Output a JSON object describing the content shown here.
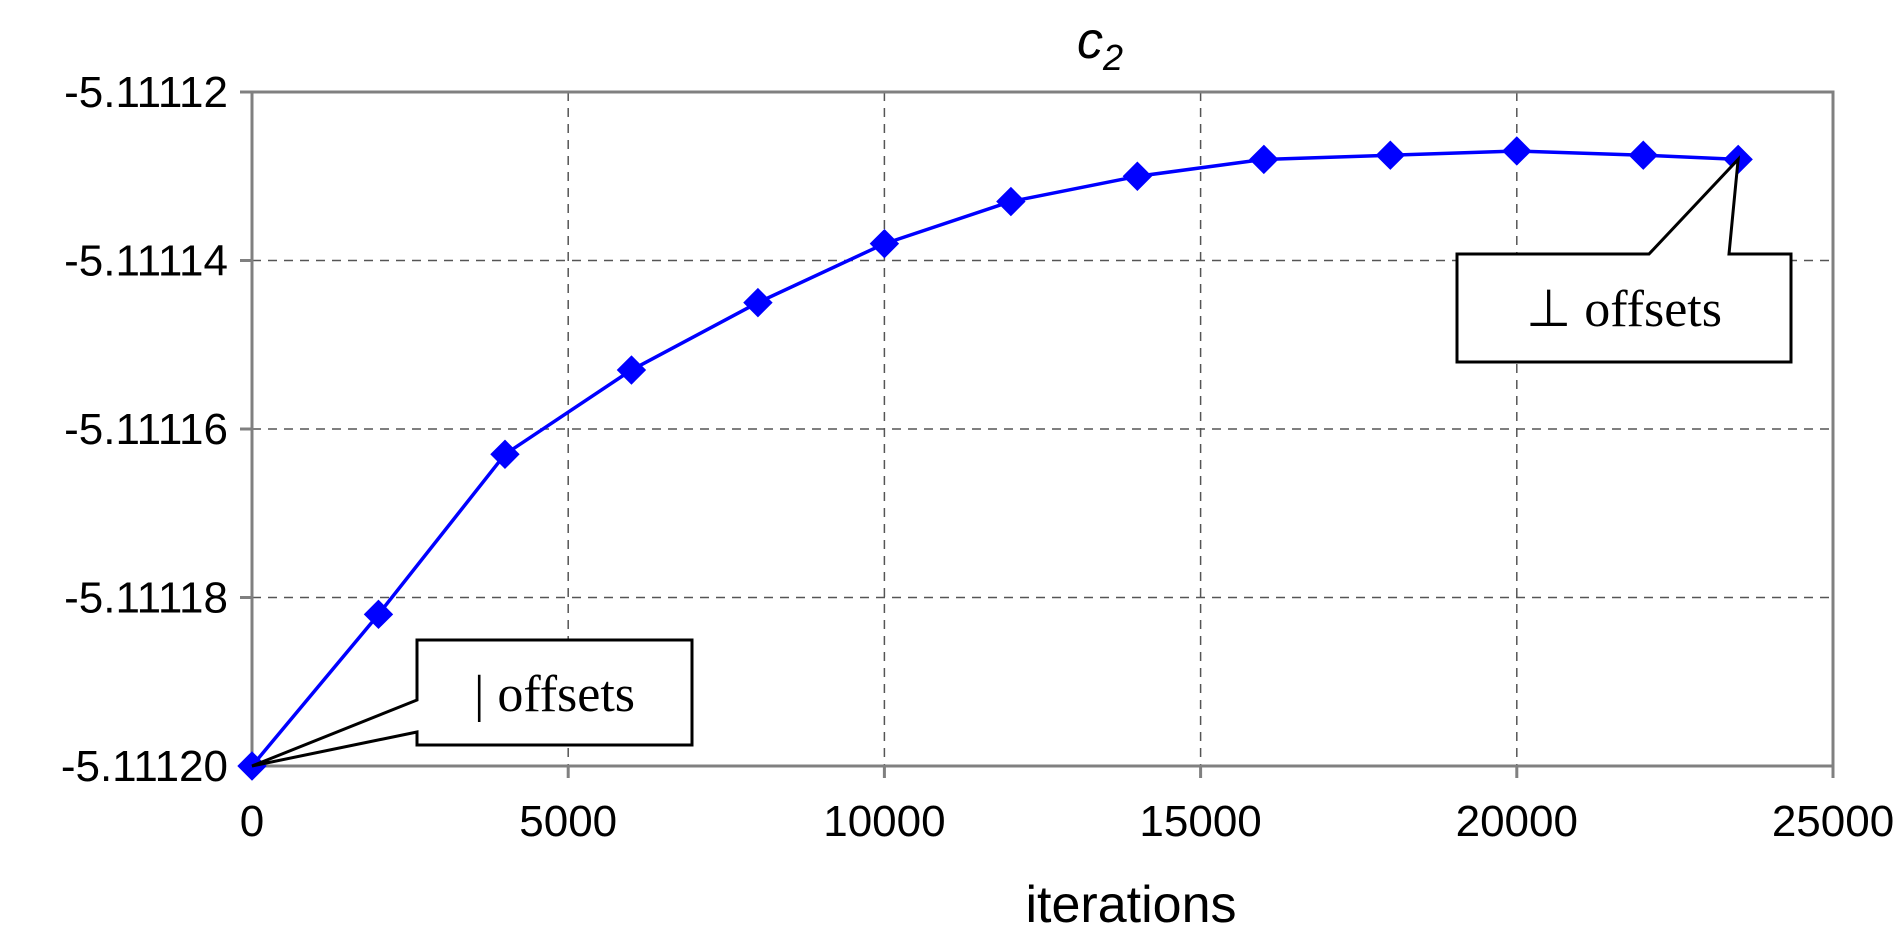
{
  "chart_data": {
    "type": "line",
    "title": {
      "main": "c",
      "subscript": "2"
    },
    "xlabel": "iterations",
    "ylabel": "",
    "xlim": [
      0,
      25000
    ],
    "ylim": [
      -5.1112,
      -5.11112
    ],
    "xticks": [
      0,
      5000,
      10000,
      15000,
      20000,
      25000
    ],
    "xtick_labels": [
      "0",
      "5000",
      "10000",
      "15000",
      "20000",
      "25000"
    ],
    "yticks": [
      -5.1112,
      -5.11118,
      -5.11116,
      -5.11114,
      -5.11112
    ],
    "ytick_labels": [
      "-5.11120",
      "-5.11118",
      "-5.11116",
      "-5.11114",
      "-5.11112"
    ],
    "grid": true,
    "series": [
      {
        "color": "#0000ff",
        "marker": "diamond",
        "x": [
          0,
          2000,
          4000,
          6000,
          8000,
          10000,
          12000,
          14000,
          16000,
          18000,
          20000,
          22000,
          23500
        ],
        "y": [
          -5.1112,
          -5.111182,
          -5.111163,
          -5.111153,
          -5.111145,
          -5.111138,
          -5.111133,
          -5.11113,
          -5.111128,
          -5.1111275,
          -5.111127,
          -5.1111275,
          -5.111128
        ]
      }
    ],
    "annotations": [
      {
        "text": "| offsets",
        "x": 0,
        "y": -5.1112
      },
      {
        "text": "⊥ offsets",
        "x": 23500,
        "y": -5.111128
      }
    ]
  }
}
